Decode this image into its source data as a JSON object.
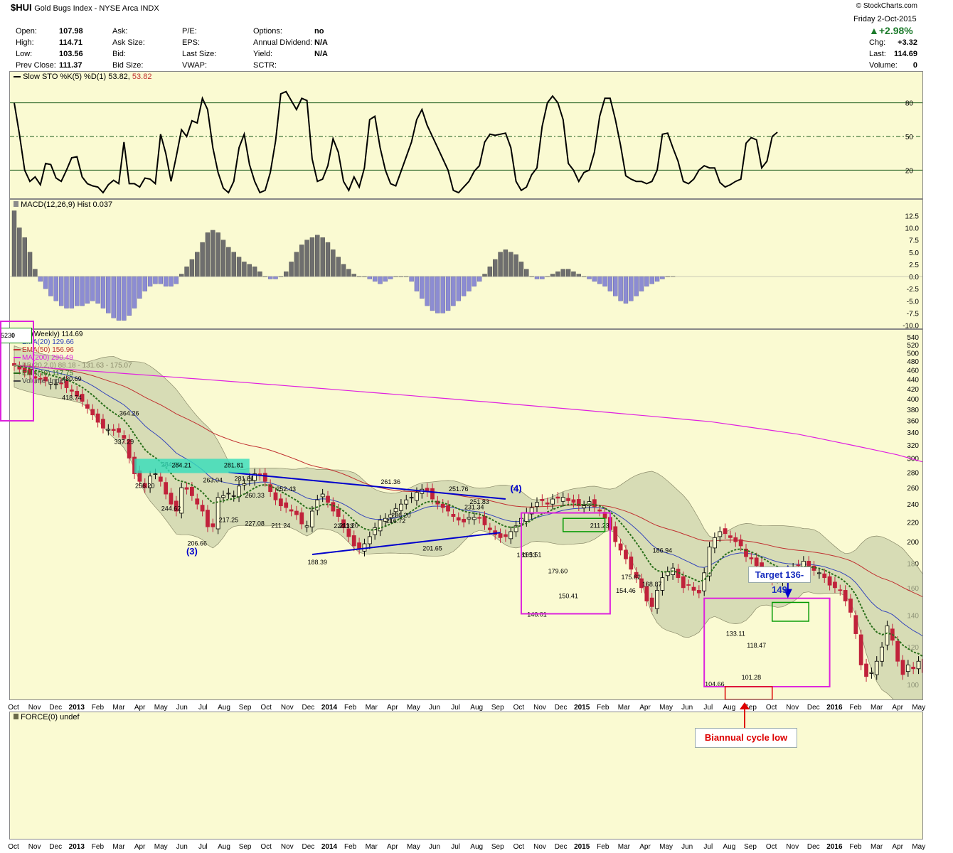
{
  "header": {
    "symbol": "$HUI",
    "name": "Gold Bugs Index - NYSE Arca  INDX",
    "credit": "© StockCharts.com",
    "date": "Friday  2-Oct-2015",
    "pct_change": "+2.98%",
    "quote_left": [
      {
        "label": "Open:",
        "value": "107.98"
      },
      {
        "label": "High:",
        "value": "114.71"
      },
      {
        "label": "Low:",
        "value": "103.56"
      },
      {
        "label": "Prev Close:",
        "value": "111.37"
      }
    ],
    "quote_mid": [
      "Ask:",
      "Ask Size:",
      "Bid:",
      "Bid Size:"
    ],
    "quote_mid2": [
      "P/E:",
      "EPS:",
      "Last Size:",
      "VWAP:"
    ],
    "quote_right": [
      {
        "label": "Options:",
        "value": "no"
      },
      {
        "label": "Annual Dividend:",
        "value": "N/A"
      },
      {
        "label": "Yield:",
        "value": "N/A"
      },
      {
        "label": "SCTR:",
        "value": ""
      }
    ],
    "quote_far": [
      {
        "label": "Chg:",
        "value": "+3.32"
      },
      {
        "label": "Last:",
        "value": "114.69"
      },
      {
        "label": "Volume:",
        "value": "0"
      }
    ]
  },
  "colors": {
    "panel_bg": "#fafad2",
    "up": "#000000",
    "down": "#c0223b",
    "ema20": "#3344bb",
    "ema50": "#c03030",
    "ma200": "#e020e0",
    "ema10": "#2a6f1a",
    "band": "#c8cfa8",
    "macd_pos": "#6e6e6e",
    "macd_neg": "#8c8cd2",
    "annot_blue": "#0000cc",
    "annot_red": "#dd0000",
    "annot_magenta": "#dd22dd",
    "annot_green": "#009900",
    "annot_cyan": "#33ddbb"
  },
  "chart_data": [
    {
      "type": "line",
      "title": "Slow STO %K(5) %D(1) 53.82, 53.82",
      "legend": "Slow STO %K(5) %D(1) 53.82,",
      "legend_value": "53.82",
      "ylim": [
        0,
        100
      ],
      "levels": [
        80,
        50,
        20
      ],
      "tick_labels": [
        "80",
        "50",
        "20"
      ],
      "values": [
        80,
        52,
        20,
        10,
        14,
        7,
        26,
        25,
        13,
        10,
        20,
        31,
        32,
        14,
        8,
        6,
        5,
        0,
        7,
        11,
        8,
        45,
        8,
        8,
        5,
        13,
        12,
        8,
        52,
        35,
        10,
        32,
        56,
        50,
        64,
        62,
        84,
        74,
        40,
        18,
        4,
        0,
        10,
        40,
        52,
        25,
        10,
        0,
        2,
        18,
        46,
        88,
        90,
        82,
        74,
        84,
        82,
        30,
        10,
        12,
        24,
        48,
        36,
        10,
        2,
        14,
        5,
        22,
        65,
        68,
        40,
        20,
        8,
        6,
        19,
        32,
        45,
        65,
        74,
        60,
        50,
        40,
        30,
        20,
        2,
        0,
        5,
        10,
        19,
        24,
        45,
        52,
        51,
        52,
        53,
        40,
        10,
        2,
        5,
        16,
        22,
        59,
        80,
        86,
        80,
        65,
        26,
        20,
        10,
        18,
        20,
        36,
        68,
        84,
        84,
        65,
        42,
        15,
        12,
        10,
        10,
        8,
        10,
        20,
        52,
        53,
        40,
        28,
        10,
        8,
        12,
        20,
        24,
        22,
        22,
        9,
        5,
        7,
        10,
        12,
        44,
        49,
        47,
        22,
        28,
        50,
        53.82
      ],
      "series": [
        {
          "name": "%K",
          "values": [
            80,
            52,
            20,
            10,
            14,
            7,
            26,
            25,
            13,
            10,
            20,
            31,
            32,
            14,
            8,
            6,
            5,
            0,
            7,
            11,
            8,
            45,
            8,
            8,
            5,
            13,
            12,
            8,
            52,
            35,
            10,
            32,
            56,
            50,
            64,
            62,
            84,
            74,
            40,
            18,
            4,
            0,
            10,
            40,
            52,
            25,
            10,
            0,
            2,
            18,
            46,
            88,
            90,
            82,
            74,
            84,
            82,
            30,
            10,
            12,
            24,
            48,
            36,
            10,
            2,
            14,
            5,
            22,
            65,
            68,
            40,
            20,
            8,
            6,
            19,
            32,
            45,
            65,
            74,
            60,
            50,
            40,
            30,
            20,
            2,
            0,
            5,
            10,
            19,
            24,
            45,
            52,
            51,
            52,
            53,
            40,
            10,
            2,
            5,
            16,
            22,
            59,
            80,
            86,
            80,
            65,
            26,
            20,
            10,
            18,
            20,
            36,
            68,
            84,
            84,
            65,
            42,
            15,
            12,
            10,
            10,
            8,
            10,
            20,
            52,
            53,
            40,
            28,
            10,
            8,
            12,
            20,
            24,
            22,
            22,
            9,
            5,
            7,
            10,
            12,
            44,
            49,
            47,
            22,
            28,
            50,
            53.82
          ]
        }
      ]
    },
    {
      "type": "bar",
      "title": "MACD(12,26,9) Hist 0.037",
      "legend": "MACD(12,26,9) Hist 0.037",
      "ylim": [
        -10,
        13
      ],
      "tick_labels": [
        "12.5",
        "10.0",
        "7.5",
        "5.0",
        "2.5",
        "0.0",
        "-2.5",
        "-5.0",
        "-7.5",
        "-10.0"
      ],
      "values": [
        13.5,
        10,
        8,
        5,
        1.5,
        -1,
        -2.5,
        -4,
        -5,
        -6,
        -6.5,
        -6.5,
        -6,
        -6,
        -5.5,
        -5,
        -5.5,
        -6.5,
        -7.5,
        -8.5,
        -9,
        -9,
        -8,
        -6.5,
        -4.5,
        -3,
        -2,
        -1.5,
        -1.5,
        -2,
        -2,
        -1.5,
        0.5,
        2,
        3.5,
        5,
        7,
        9,
        9.5,
        9,
        7.5,
        6,
        5,
        4,
        3,
        2.5,
        2,
        1,
        0,
        -0.5,
        -0.5,
        0,
        1,
        3,
        5,
        6.5,
        7.5,
        8,
        8.5,
        8,
        7,
        5.5,
        4,
        2.5,
        1.5,
        0.5,
        0,
        0,
        -0.5,
        -1,
        -1.5,
        -1,
        -0.5,
        0,
        0,
        0,
        -1,
        -3,
        -4.5,
        -6,
        -7,
        -7.5,
        -7.5,
        -7,
        -6,
        -5,
        -4,
        -3,
        -2,
        -1,
        0.5,
        2,
        3.5,
        5,
        5.5,
        5,
        4.5,
        3,
        1.5,
        0,
        -0.5,
        -0.5,
        0,
        0.5,
        1,
        1.5,
        1.5,
        1,
        0.5,
        0,
        -0.5,
        -1,
        -1.5,
        -2,
        -3,
        -4,
        -5,
        -5.5,
        -5,
        -4,
        -3,
        -2,
        -1.5,
        -1,
        -0.5,
        0,
        0.037
      ],
      "series": [
        {
          "name": "Hist",
          "values": []
        }
      ]
    },
    {
      "type": "candlestick",
      "title": "$HUI (Weekly) 114.69",
      "legend": [
        {
          "name": "EMA(20) 129.66",
          "color": "#3344bb"
        },
        {
          "name": "EMA(50) 156.96",
          "color": "#c03030"
        },
        {
          "name": "MA(200) 290.49",
          "color": "#e020e0"
        },
        {
          "name": "BB(20,2.0) 88.18 - 131.63 - 175.07",
          "color": "#8a8a6a"
        },
        {
          "name": "EMA(10) 117.75",
          "color": "#2a6f1a"
        },
        {
          "name": "Volume undef",
          "color": "#444444"
        }
      ],
      "series_title": "$HUI (Weekly)",
      "last_close": "114.69",
      "legend_badge": "523",
      "legend_badge_glyph": "0",
      "ylim": [
        95,
        540
      ],
      "y_scale": "log",
      "tick_labels": [
        "540",
        "520",
        "500",
        "480",
        "460",
        "440",
        "420",
        "400",
        "380",
        "360",
        "340",
        "320",
        "300",
        "280",
        "260",
        "240",
        "220",
        "200",
        "180",
        "160",
        "140",
        "120",
        "100"
      ],
      "x_labels": [
        "Oct",
        "Nov",
        "Dec",
        "2013",
        "Feb",
        "Mar",
        "Apr",
        "May",
        "Jun",
        "Jul",
        "Aug",
        "Sep",
        "Oct",
        "Nov",
        "Dec",
        "2014",
        "Feb",
        "Mar",
        "Apr",
        "May",
        "Jun",
        "Jul",
        "Aug",
        "Sep",
        "Oct",
        "Nov",
        "Dec",
        "2015",
        "Feb",
        "Mar",
        "Apr",
        "May",
        "Jun",
        "Jul",
        "Aug",
        "Sep",
        "Oct",
        "Nov",
        "Dec",
        "2016",
        "Feb",
        "Mar",
        "Apr",
        "May"
      ],
      "bold_x_labels": [
        "2013",
        "2014",
        "2015",
        "2016"
      ],
      "closes": [
        470,
        462,
        455,
        450,
        442,
        440,
        436,
        432,
        430,
        430,
        422,
        415,
        405,
        395,
        382,
        370,
        357,
        347,
        345,
        343,
        340,
        330,
        300,
        278,
        268,
        260,
        275,
        278,
        268,
        252,
        240,
        232,
        260,
        258,
        250,
        240,
        232,
        215,
        215,
        248,
        250,
        253,
        250,
        262,
        265,
        272,
        278,
        276,
        268,
        255,
        245,
        238,
        236,
        232,
        228,
        218,
        216,
        232,
        245,
        252,
        242,
        232,
        226,
        214,
        205,
        196,
        193,
        198,
        205,
        214,
        222,
        224,
        228,
        235,
        240,
        245,
        248,
        254,
        258,
        255,
        246,
        240,
        236,
        232,
        226,
        222,
        220,
        225,
        225,
        224,
        217,
        212,
        207,
        204,
        205,
        210,
        216,
        224,
        230,
        236,
        242,
        244,
        240,
        246,
        247,
        248,
        244,
        242,
        238,
        238,
        243,
        237,
        232,
        224,
        212,
        200,
        192,
        184,
        175,
        168,
        160,
        150,
        146,
        158,
        168,
        173,
        176,
        168,
        160,
        162,
        158,
        156,
        172,
        195,
        204,
        210,
        208,
        204,
        200,
        196,
        186,
        184,
        178,
        172,
        170,
        166,
        168,
        171,
        174,
        176,
        178,
        182,
        176,
        174,
        172,
        168,
        162,
        160,
        158,
        150,
        142,
        128,
        110,
        104,
        106,
        112,
        120,
        133,
        124,
        112,
        105,
        110,
        108,
        112,
        106,
        118,
        114.69
      ],
      "price_labels": [
        "430.69",
        "418.74",
        "364.26",
        "337.29",
        "284.21",
        "281.81",
        "256.20",
        "244.62",
        "263.04",
        "260.33",
        "252.43",
        "206.66",
        "217.25",
        "227.08",
        "211.24",
        "224.33",
        "211.20",
        "188.39",
        "261.36",
        "236.20",
        "216.72",
        "201.65",
        "251.76",
        "251.83",
        "231.34",
        "195.51",
        "183.33",
        "179.60",
        "150.41",
        "146.01",
        "211.23",
        "175.62",
        "186.94",
        "168.87",
        "154.46",
        "133.11",
        "118.47",
        "104.66",
        "101.28"
      ],
      "ma200": [
        470,
        468,
        466,
        464,
        462,
        460,
        458,
        456,
        454,
        452,
        450,
        448,
        446,
        444,
        442,
        440,
        438,
        436,
        434,
        432,
        430,
        428,
        426,
        424,
        422,
        420,
        418,
        416,
        414,
        412,
        410,
        408,
        406,
        404,
        402,
        400,
        398,
        396,
        394,
        392,
        390,
        388,
        386,
        384,
        382,
        380,
        378,
        376,
        374,
        372,
        370,
        368,
        366,
        364,
        362,
        360,
        358,
        355,
        352,
        349,
        346,
        343,
        340,
        337,
        333,
        329,
        325,
        321,
        317,
        313,
        309,
        305,
        300,
        295,
        290.49
      ],
      "annotations": {
        "wave3": "(3)",
        "wave4": "(4)",
        "target": "Target 136-149",
        "cycle_low": "Biannual cycle low"
      }
    },
    {
      "type": "line",
      "title": "FORCE(0) undef",
      "legend": "FORCE(0) undef",
      "values": []
    }
  ]
}
